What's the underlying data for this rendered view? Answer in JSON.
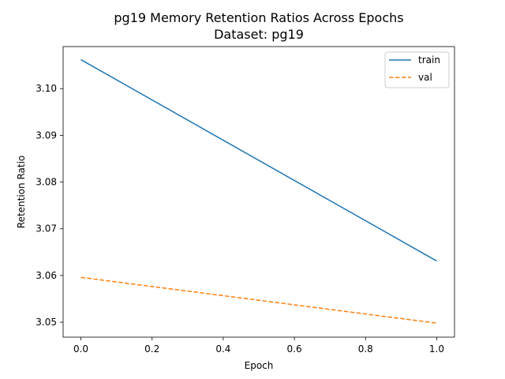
{
  "chart_data": {
    "type": "line",
    "title": "pg19 Memory Retention Ratios Across Epochs",
    "subtitle": "Dataset: pg19",
    "xlabel": "Epoch",
    "ylabel": "Retention Ratio",
    "x": [
      0.0,
      1.0
    ],
    "xlim": [
      -0.05,
      1.05
    ],
    "ylim": [
      3.0468,
      3.109
    ],
    "xticks": [
      0.0,
      0.2,
      0.4,
      0.6,
      0.8,
      1.0
    ],
    "xtick_labels": [
      "0.0",
      "0.2",
      "0.4",
      "0.6",
      "0.8",
      "1.0"
    ],
    "yticks": [
      3.05,
      3.06,
      3.07,
      3.08,
      3.09,
      3.1
    ],
    "ytick_labels": [
      "3.05",
      "3.06",
      "3.07",
      "3.08",
      "3.09",
      "3.10"
    ],
    "grid": false,
    "legend_position": "top-right",
    "series": [
      {
        "name": "train",
        "values": [
          3.1062,
          3.0631
        ],
        "color": "#1f77b4",
        "style": "solid"
      },
      {
        "name": "val",
        "values": [
          3.0596,
          3.0498
        ],
        "color": "#ff7f0e",
        "style": "dashed"
      }
    ]
  }
}
